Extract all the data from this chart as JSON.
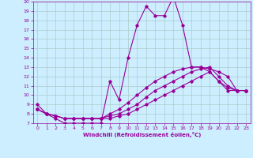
{
  "xlabel": "Windchill (Refroidissement éolien,°C)",
  "bg_color": "#cceeff",
  "line_color": "#990099",
  "grid_color": "#aacccc",
  "xlim": [
    -0.5,
    23.5
  ],
  "ylim": [
    7,
    20
  ],
  "yticks": [
    7,
    8,
    9,
    10,
    11,
    12,
    13,
    14,
    15,
    16,
    17,
    18,
    19,
    20
  ],
  "xticks": [
    0,
    1,
    2,
    3,
    4,
    5,
    6,
    7,
    8,
    9,
    10,
    11,
    12,
    13,
    14,
    15,
    16,
    17,
    18,
    19,
    20,
    21,
    22,
    23
  ],
  "series": [
    {
      "x": [
        0,
        1,
        2,
        3,
        4,
        5,
        6,
        7,
        8,
        9,
        10,
        11,
        12,
        13,
        14,
        15,
        16,
        17,
        18,
        19,
        20,
        21,
        22,
        23
      ],
      "y": [
        9.0,
        8.0,
        7.5,
        7.0,
        7.0,
        7.0,
        7.0,
        7.0,
        11.5,
        9.5,
        14.0,
        17.5,
        19.5,
        18.5,
        18.5,
        20.5,
        17.5,
        13.0,
        13.0,
        12.5,
        11.5,
        10.5,
        10.5,
        10.5
      ]
    },
    {
      "x": [
        0,
        1,
        2,
        3,
        4,
        5,
        6,
        7,
        8,
        9,
        10,
        11,
        12,
        13,
        14,
        15,
        16,
        17,
        18,
        19,
        20,
        21,
        22,
        23
      ],
      "y": [
        8.5,
        8.0,
        7.8,
        7.5,
        7.5,
        7.5,
        7.5,
        7.5,
        8.0,
        8.5,
        9.2,
        10.0,
        10.8,
        11.5,
        12.0,
        12.5,
        12.8,
        13.0,
        13.0,
        12.8,
        12.5,
        12.0,
        10.5,
        10.5
      ]
    },
    {
      "x": [
        0,
        1,
        2,
        3,
        4,
        5,
        6,
        7,
        8,
        9,
        10,
        11,
        12,
        13,
        14,
        15,
        16,
        17,
        18,
        19,
        20,
        21,
        22,
        23
      ],
      "y": [
        8.5,
        8.0,
        7.8,
        7.5,
        7.5,
        7.5,
        7.5,
        7.5,
        7.8,
        8.0,
        8.5,
        9.0,
        9.8,
        10.5,
        11.0,
        11.5,
        12.0,
        12.5,
        12.8,
        13.0,
        12.0,
        11.0,
        10.5,
        10.5
      ]
    },
    {
      "x": [
        0,
        1,
        2,
        3,
        4,
        5,
        6,
        7,
        8,
        9,
        10,
        11,
        12,
        13,
        14,
        15,
        16,
        17,
        18,
        19,
        20,
        21,
        22,
        23
      ],
      "y": [
        8.5,
        8.0,
        7.8,
        7.5,
        7.5,
        7.5,
        7.5,
        7.5,
        7.5,
        7.8,
        8.0,
        8.5,
        9.0,
        9.5,
        10.0,
        10.5,
        11.0,
        11.5,
        12.0,
        12.5,
        11.5,
        10.8,
        10.5,
        10.5
      ]
    }
  ]
}
